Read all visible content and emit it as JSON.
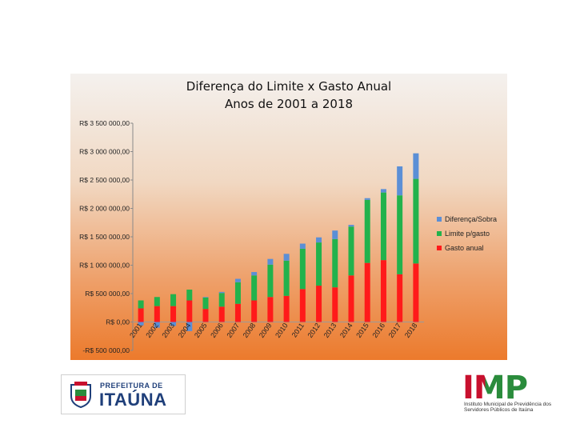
{
  "chart_data": {
    "type": "bar",
    "title": "Diferença do Limite x Gasto Anual",
    "subtitle": "Anos de 2001 a 2018",
    "categories": [
      "2001",
      "2002",
      "2003",
      "2004",
      "2005",
      "2006",
      "2007",
      "2008",
      "2009",
      "2010",
      "2011",
      "2012",
      "2013",
      "2014",
      "2015",
      "2016",
      "2017",
      "2018"
    ],
    "ylim": [
      -500000,
      3500000
    ],
    "yticks": [
      -500000,
      0,
      500000,
      1000000,
      1500000,
      2000000,
      2500000,
      3000000,
      3500000
    ],
    "ytick_labels": [
      "-R$ 500 000,00",
      "R$ 0,00",
      "R$ 500 000,00",
      "R$ 1 000 000,00",
      "R$ 1 500 000,00",
      "R$ 2 000 000,00",
      "R$ 2 500 000,00",
      "R$ 3 000 000,00",
      "R$ 3 500 000,00"
    ],
    "series": [
      {
        "name": "Diferença/Sobra",
        "color": "#5b8fd6",
        "values": [
          -60000,
          -100000,
          -70000,
          -160000,
          10000,
          20000,
          60000,
          60000,
          100000,
          120000,
          90000,
          90000,
          150000,
          30000,
          30000,
          60000,
          510000,
          450000
        ]
      },
      {
        "name": "Limite p/gasto",
        "color": "#22b24c",
        "values": [
          380000,
          440000,
          490000,
          570000,
          430000,
          510000,
          700000,
          820000,
          1010000,
          1080000,
          1290000,
          1400000,
          1460000,
          1680000,
          2150000,
          2280000,
          2230000,
          2520000
        ]
      },
      {
        "name": "Gasto anual",
        "color": "#ff1a1a",
        "values": [
          240000,
          280000,
          280000,
          380000,
          230000,
          270000,
          320000,
          380000,
          440000,
          460000,
          580000,
          640000,
          610000,
          820000,
          1040000,
          1090000,
          840000,
          1030000
        ]
      }
    ],
    "legend_position": "right"
  },
  "logos": {
    "left_small": "PREFEITURA DE",
    "left_big": "ITAÚNA",
    "right_big": "IMP",
    "right_sub": "Instituto Municipal de Previdência dos Servidores Públicos de Itaúna"
  }
}
